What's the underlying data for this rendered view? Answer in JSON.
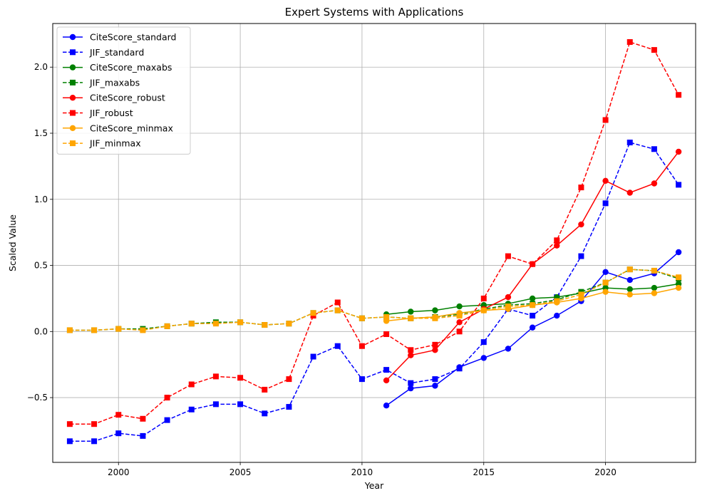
{
  "chart_data": {
    "type": "line",
    "title": "Expert Systems with Applications",
    "xlabel": "Year",
    "ylabel": "Scaled Value",
    "xlim": [
      1997.3,
      2023.7
    ],
    "ylim": [
      -0.99,
      2.33
    ],
    "xticks": [
      2000,
      2005,
      2010,
      2015,
      2020
    ],
    "yticks": [
      -0.5,
      0.0,
      0.5,
      1.0,
      1.5,
      2.0
    ],
    "xtick_labels": [
      "2000",
      "2005",
      "2010",
      "2015",
      "2020"
    ],
    "ytick_labels": [
      "−0.5",
      "0.0",
      "0.5",
      "1.0",
      "1.5",
      "2.0"
    ],
    "grid": true,
    "legend_position": "upper-left",
    "series": [
      {
        "name": "CiteScore_standard",
        "color": "#0000ff",
        "linestyle": "solid",
        "marker": "circle",
        "x": [
          2011,
          2012,
          2013,
          2014,
          2015,
          2016,
          2017,
          2018,
          2019,
          2020,
          2021,
          2022,
          2023
        ],
        "y": [
          -0.56,
          -0.43,
          -0.41,
          -0.27,
          -0.2,
          -0.13,
          0.03,
          0.12,
          0.23,
          0.45,
          0.39,
          0.44,
          0.6
        ]
      },
      {
        "name": "JIF_standard",
        "color": "#0000ff",
        "linestyle": "dashed",
        "marker": "square",
        "x": [
          1998,
          1999,
          2000,
          2001,
          2002,
          2003,
          2004,
          2005,
          2006,
          2007,
          2008,
          2009,
          2010,
          2011,
          2012,
          2013,
          2014,
          2015,
          2016,
          2017,
          2018,
          2019,
          2020,
          2021,
          2022,
          2023
        ],
        "y": [
          -0.83,
          -0.83,
          -0.77,
          -0.79,
          -0.67,
          -0.59,
          -0.55,
          -0.55,
          -0.62,
          -0.57,
          -0.19,
          -0.11,
          -0.36,
          -0.29,
          -0.39,
          -0.36,
          -0.28,
          -0.08,
          0.17,
          0.12,
          0.26,
          0.57,
          0.97,
          1.43,
          1.38,
          1.11
        ]
      },
      {
        "name": "CiteScore_maxabs",
        "color": "#008000",
        "linestyle": "solid",
        "marker": "circle",
        "x": [
          2011,
          2012,
          2013,
          2014,
          2015,
          2016,
          2017,
          2018,
          2019,
          2020,
          2021,
          2022,
          2023
        ],
        "y": [
          0.13,
          0.15,
          0.16,
          0.19,
          0.2,
          0.21,
          0.25,
          0.26,
          0.29,
          0.33,
          0.32,
          0.33,
          0.36
        ]
      },
      {
        "name": "JIF_maxabs",
        "color": "#008000",
        "linestyle": "dashed",
        "marker": "square",
        "x": [
          1998,
          1999,
          2000,
          2001,
          2002,
          2003,
          2004,
          2005,
          2006,
          2007,
          2008,
          2009,
          2010,
          2011,
          2012,
          2013,
          2014,
          2015,
          2016,
          2017,
          2018,
          2019,
          2020,
          2021,
          2022,
          2023
        ],
        "y": [
          0.01,
          0.01,
          0.02,
          0.02,
          0.04,
          0.06,
          0.07,
          0.07,
          0.05,
          0.06,
          0.14,
          0.16,
          0.1,
          0.11,
          0.1,
          0.11,
          0.13,
          0.17,
          0.2,
          0.21,
          0.24,
          0.3,
          0.37,
          0.47,
          0.46,
          0.4
        ]
      },
      {
        "name": "CiteScore_robust",
        "color": "#ff0000",
        "linestyle": "solid",
        "marker": "circle",
        "x": [
          2011,
          2012,
          2013,
          2014,
          2015,
          2016,
          2017,
          2018,
          2019,
          2020,
          2021,
          2022,
          2023
        ],
        "y": [
          -0.37,
          -0.18,
          -0.14,
          0.07,
          0.17,
          0.26,
          0.51,
          0.65,
          0.81,
          1.14,
          1.05,
          1.12,
          1.36
        ]
      },
      {
        "name": "JIF_robust",
        "color": "#ff0000",
        "linestyle": "dashed",
        "marker": "square",
        "x": [
          1998,
          1999,
          2000,
          2001,
          2002,
          2003,
          2004,
          2005,
          2006,
          2007,
          2008,
          2009,
          2010,
          2011,
          2012,
          2013,
          2014,
          2015,
          2016,
          2017,
          2018,
          2019,
          2020,
          2021,
          2022,
          2023
        ],
        "y": [
          -0.7,
          -0.7,
          -0.63,
          -0.66,
          -0.5,
          -0.4,
          -0.34,
          -0.35,
          -0.44,
          -0.36,
          0.12,
          0.22,
          -0.11,
          -0.02,
          -0.14,
          -0.1,
          0.0,
          0.25,
          0.57,
          0.51,
          0.69,
          1.09,
          1.6,
          2.19,
          2.13,
          1.79
        ]
      },
      {
        "name": "CiteScore_minmax",
        "color": "#ffa500",
        "linestyle": "solid",
        "marker": "circle",
        "x": [
          2011,
          2012,
          2013,
          2014,
          2015,
          2016,
          2017,
          2018,
          2019,
          2020,
          2021,
          2022,
          2023
        ],
        "y": [
          0.08,
          0.1,
          0.11,
          0.14,
          0.16,
          0.17,
          0.2,
          0.22,
          0.25,
          0.3,
          0.28,
          0.29,
          0.33
        ]
      },
      {
        "name": "JIF_minmax",
        "color": "#ffa500",
        "linestyle": "dashed",
        "marker": "square",
        "x": [
          1998,
          1999,
          2000,
          2001,
          2002,
          2003,
          2004,
          2005,
          2006,
          2007,
          2008,
          2009,
          2010,
          2011,
          2012,
          2013,
          2014,
          2015,
          2016,
          2017,
          2018,
          2019,
          2020,
          2021,
          2022,
          2023
        ],
        "y": [
          0.01,
          0.01,
          0.02,
          0.01,
          0.04,
          0.06,
          0.06,
          0.07,
          0.05,
          0.06,
          0.14,
          0.16,
          0.1,
          0.11,
          0.1,
          0.1,
          0.12,
          0.16,
          0.19,
          0.2,
          0.23,
          0.28,
          0.37,
          0.47,
          0.46,
          0.41
        ]
      }
    ]
  }
}
